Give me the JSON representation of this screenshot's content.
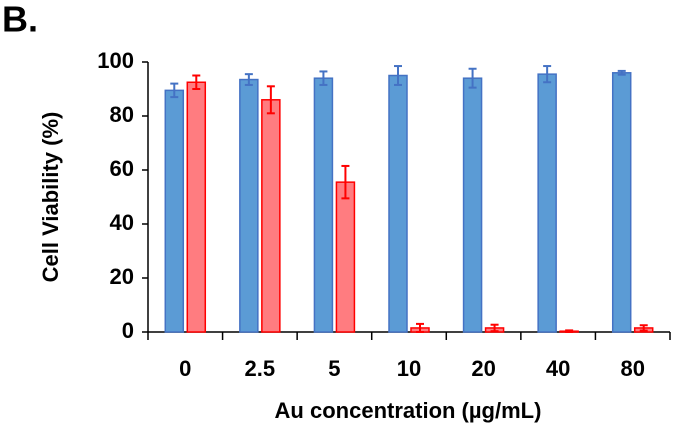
{
  "chart_data": {
    "type": "bar",
    "panel_label": "B.",
    "x_label": "Au concentration (µg/mL)",
    "y_label": "Cell Viability (%)",
    "categories": [
      "0",
      "2.5",
      "5",
      "10",
      "20",
      "40",
      "80"
    ],
    "series": [
      {
        "color": "#5b9bd5",
        "edge_color": "#4472c4",
        "values": [
          89.5,
          93.5,
          94,
          95,
          94,
          95.5,
          96
        ],
        "errors": [
          2.5,
          2,
          2.5,
          3.5,
          3.5,
          3,
          0.7
        ]
      },
      {
        "color": "#ff7c80",
        "edge_color": "#ff0000",
        "values": [
          92.5,
          86,
          55.5,
          1.5,
          1.5,
          0.3,
          1.5
        ],
        "errors": [
          2.5,
          5,
          6,
          1.5,
          1.2,
          0.3,
          1
        ]
      }
    ],
    "ylim": [
      0,
      100
    ],
    "yticks": [
      0,
      20,
      40,
      60,
      80,
      100
    ],
    "grid": false
  }
}
